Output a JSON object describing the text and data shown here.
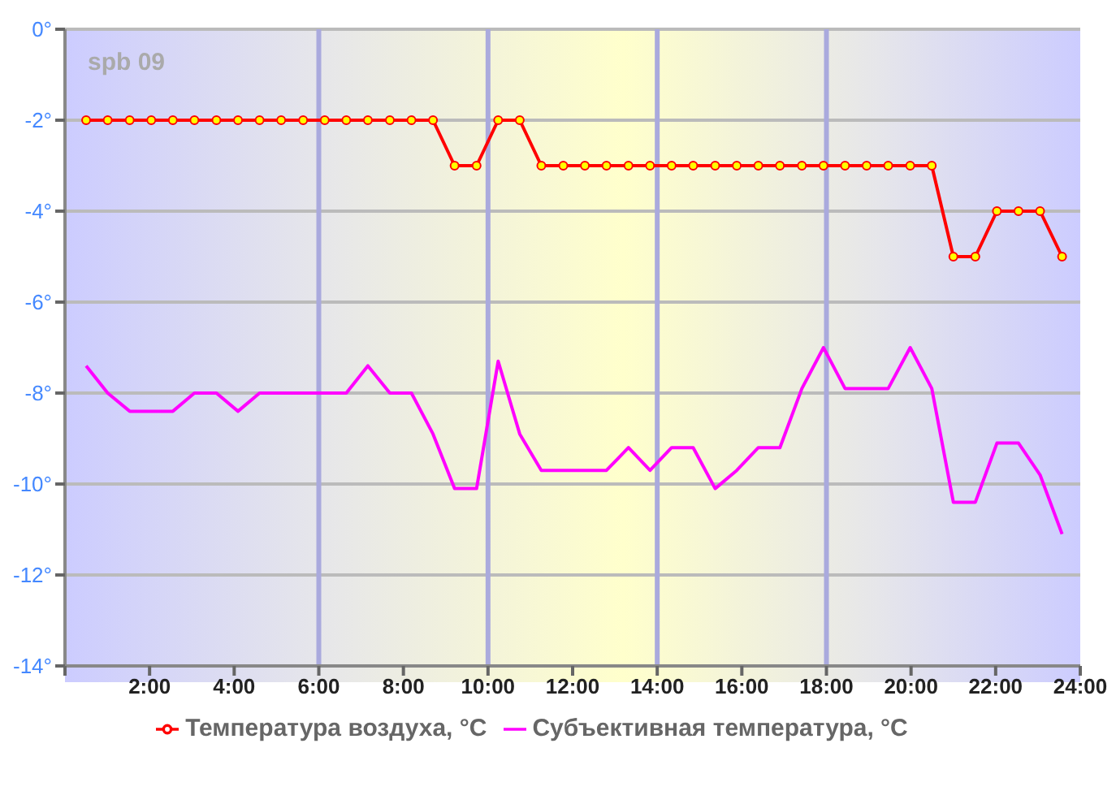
{
  "chart_data": {
    "type": "line",
    "x": [
      0.5,
      1.01,
      1.53,
      2.04,
      2.55,
      3.06,
      3.58,
      4.09,
      4.6,
      5.11,
      5.63,
      6.14,
      6.65,
      7.16,
      7.68,
      8.19,
      8.7,
      9.21,
      9.73,
      10.24,
      10.75,
      11.26,
      11.78,
      12.29,
      12.8,
      13.32,
      13.83,
      14.34,
      14.85,
      15.37,
      15.88,
      16.39,
      16.9,
      17.42,
      17.93,
      18.44,
      18.95,
      19.46,
      19.98,
      20.49,
      21.0,
      21.52,
      22.03,
      22.54,
      23.05,
      23.57
    ],
    "series": [
      {
        "name": "Температура воздуха, °C",
        "color": "#ff0000",
        "marker": "circle",
        "values": [
          -2,
          -2,
          -2,
          -2,
          -2,
          -2,
          -2,
          -2,
          -2,
          -2,
          -2,
          -2,
          -2,
          -2,
          -2,
          -2,
          -2,
          -3,
          -3,
          -2,
          -2,
          -3,
          -3,
          -3,
          -3,
          -3,
          -3,
          -3,
          -3,
          -3,
          -3,
          -3,
          -3,
          -3,
          -3,
          -3,
          -3,
          -3,
          -3,
          -3,
          -5,
          -5,
          -4,
          -4,
          -4,
          -5
        ]
      },
      {
        "name": "Субъективная температура, °C",
        "color": "#ff00ff",
        "marker": "none",
        "values": [
          -7.4,
          -8,
          -8.4,
          -8.4,
          -8.4,
          -8,
          -8,
          -8.4,
          -8,
          -8,
          -8,
          -8,
          -8,
          -7.4,
          -8,
          -8,
          -8.9,
          -10.1,
          -10.1,
          -7.3,
          -8.9,
          -9.7,
          -9.7,
          -9.7,
          -9.7,
          -9.2,
          -9.7,
          -9.2,
          -9.2,
          -10.1,
          -9.7,
          -9.2,
          -9.2,
          -7.9,
          -7,
          -7.9,
          -7.9,
          -7.9,
          -7,
          -7.9,
          -10.4,
          -10.4,
          -9.1,
          -9.1,
          -9.8,
          -11.1
        ]
      }
    ],
    "xlim": [
      0,
      24
    ],
    "xticks": [
      {
        "value": 0,
        "label": null
      },
      {
        "value": 2,
        "label": "2:00"
      },
      {
        "value": 4,
        "label": "4:00"
      },
      {
        "value": 6,
        "label": "6:00"
      },
      {
        "value": 8,
        "label": "8:00"
      },
      {
        "value": 10,
        "label": "10:00"
      },
      {
        "value": 12,
        "label": "12:00"
      },
      {
        "value": 14,
        "label": "14:00"
      },
      {
        "value": 16,
        "label": "16:00"
      },
      {
        "value": 18,
        "label": "18:00"
      },
      {
        "value": 20,
        "label": "20:00"
      },
      {
        "value": 22,
        "label": "22:00"
      },
      {
        "value": 24,
        "label": "24:00"
      }
    ],
    "ylim": [
      -14,
      0
    ],
    "yticks": [
      {
        "value": -14,
        "label": "-14°"
      },
      {
        "value": -12,
        "label": "-12°"
      },
      {
        "value": -10,
        "label": "-10°"
      },
      {
        "value": -8,
        "label": "-8°"
      },
      {
        "value": -6,
        "label": "-6°"
      },
      {
        "value": -4,
        "label": "-4°"
      },
      {
        "value": -2,
        "label": "-2°"
      },
      {
        "value": 0,
        "label": "0°"
      }
    ],
    "grid": "y",
    "legend": "bottom",
    "ref_lines": [
      {
        "axis": "x",
        "value": 6,
        "color": "#aaaadd"
      },
      {
        "axis": "x",
        "value": 10,
        "color": "#aaaadd"
      },
      {
        "axis": "x",
        "value": 14,
        "color": "#aaaadd"
      },
      {
        "axis": "x",
        "value": 18,
        "color": "#aaaadd"
      }
    ],
    "annotations": [
      "spb 09"
    ]
  }
}
